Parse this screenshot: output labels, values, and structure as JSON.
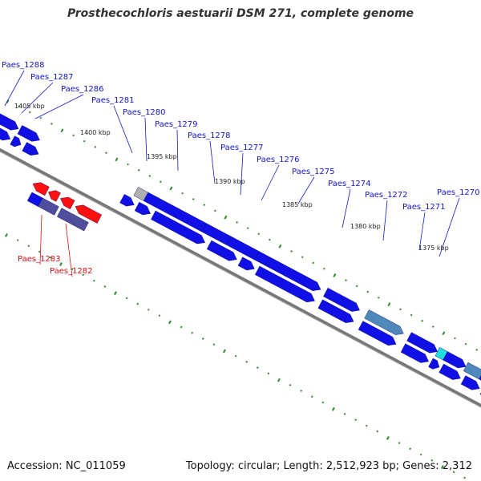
{
  "title": "Prosthecochloris aestuarii DSM 271, complete genome",
  "footer": {
    "accession": "Accession: NC_011059",
    "summary": "Topology: circular; Length: 2,512,923 bp; Genes: 2,312"
  },
  "colors": {
    "backbone": "#777777",
    "tick": "#2a8a2a",
    "gene_blue": "#1010e6",
    "gene_red": "#ff1010",
    "gene_slate": "#4e4e9c",
    "gene_steel": "#4f88bb",
    "gene_cyan": "#22dddd",
    "gene_gray": "#b0b0b0",
    "label_blue": "#1414c8",
    "label_red": "#dd1111"
  },
  "kbp_labels": [
    "1405 kbp",
    "1400 kbp",
    "1395 kbp",
    "1390 kbp",
    "1385 kbp",
    "1380 kbp",
    "1375 kbp"
  ],
  "gene_labels": [
    {
      "name": "Paes_1288",
      "color": "blue"
    },
    {
      "name": "Paes_1287",
      "color": "blue"
    },
    {
      "name": "Paes_1286",
      "color": "blue"
    },
    {
      "name": "Paes_1281",
      "color": "blue"
    },
    {
      "name": "Paes_1280",
      "color": "blue"
    },
    {
      "name": "Paes_1279",
      "color": "blue"
    },
    {
      "name": "Paes_1278",
      "color": "blue"
    },
    {
      "name": "Paes_1277",
      "color": "blue"
    },
    {
      "name": "Paes_1276",
      "color": "blue"
    },
    {
      "name": "Paes_1275",
      "color": "blue"
    },
    {
      "name": "Paes_1274",
      "color": "blue"
    },
    {
      "name": "Paes_1272",
      "color": "blue"
    },
    {
      "name": "Paes_1271",
      "color": "blue"
    },
    {
      "name": "Paes_1270",
      "color": "blue"
    },
    {
      "name": "Paes_1283",
      "color": "red"
    },
    {
      "name": "Paes_1282",
      "color": "red"
    }
  ]
}
